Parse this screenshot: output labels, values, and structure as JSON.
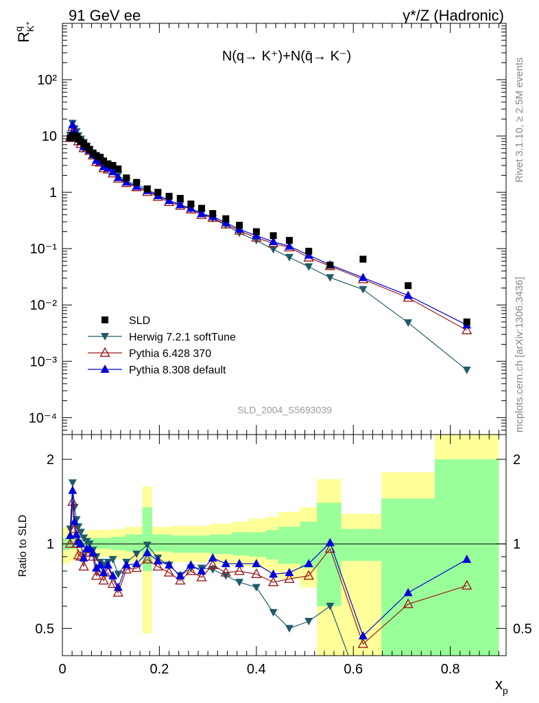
{
  "header": {
    "left": "91 GeV ee",
    "right": "γ*/Z (Hadronic)"
  },
  "side_text": {
    "rivet": "Rivet 3.1.10, ≥ 2.5M events",
    "mcplots": "mcplots.cern.ch [arXiv:1306.3436]"
  },
  "ylabel_top": {
    "main": "R",
    "sup": "q",
    "sub": "K",
    "subsup": "+"
  },
  "inner_title": "N(q→ K⁺)+N(q̄→ K⁻)",
  "analysis_id": "SLD_2004_S5693039",
  "ylabel_ratio": "Ratio to SLD",
  "xlabel": "x",
  "xlabel_sub": "p",
  "legend": [
    {
      "label": "SLD",
      "marker": "square",
      "color": "#000000"
    },
    {
      "label": "Herwig 7.2.1 softTune",
      "marker": "triangle-down",
      "color": "#1f5c6b"
    },
    {
      "label": "Pythia 6.428 370",
      "marker": "triangle-open",
      "color": "#9b1b1b"
    },
    {
      "label": "Pythia 8.308 default",
      "marker": "triangle-up",
      "color": "#0000dd"
    }
  ],
  "chart_data": {
    "type": "scatter",
    "x_range": [
      0,
      0.915
    ],
    "top_panel": {
      "yscale": "log",
      "ylim": [
        5e-05,
        1000
      ],
      "y_ticks": [
        "10⁻⁴",
        "10⁻³",
        "10⁻²",
        "10⁻¹",
        "1",
        "10",
        "10²"
      ]
    },
    "ratio_panel": {
      "yscale": "log",
      "ylim": [
        0.4,
        2.45
      ],
      "y_ticks": [
        "0.5",
        "1",
        "2"
      ]
    },
    "x_ticks": [
      "0",
      "0.2",
      "0.4",
      "0.6",
      "0.8"
    ],
    "x": [
      0.016,
      0.021,
      0.025,
      0.029,
      0.033,
      0.038,
      0.044,
      0.05,
      0.056,
      0.063,
      0.07,
      0.078,
      0.085,
      0.094,
      0.104,
      0.115,
      0.132,
      0.153,
      0.175,
      0.197,
      0.22,
      0.243,
      0.265,
      0.287,
      0.31,
      0.337,
      0.365,
      0.4,
      0.435,
      0.468,
      0.508,
      0.552,
      0.62,
      0.713,
      0.834
    ],
    "series": [
      {
        "name": "SLD",
        "values": [
          9.2,
          10.2,
          10.0,
          9.8,
          8.8,
          8.0,
          7.3,
          6.5,
          5.8,
          5.0,
          4.5,
          4.2,
          3.6,
          3.2,
          3.0,
          2.6,
          1.8,
          1.5,
          1.15,
          1.0,
          0.85,
          0.78,
          0.62,
          0.52,
          0.42,
          0.34,
          0.26,
          0.2,
          0.17,
          0.14,
          0.09,
          0.051,
          0.065,
          0.022,
          0.005
        ]
      },
      {
        "name": "Herwig 7.2.1 softTune",
        "ratio": [
          1.13,
          1.65,
          1.35,
          1.22,
          1.15,
          1.1,
          1.05,
          1.02,
          1.0,
          0.95,
          0.9,
          0.86,
          0.84,
          0.86,
          0.88,
          0.78,
          0.86,
          0.92,
          0.99,
          0.89,
          0.84,
          0.77,
          0.82,
          0.82,
          0.81,
          0.77,
          0.73,
          0.7,
          0.57,
          0.5,
          0.53,
          0.6,
          0.29,
          0.22,
          0.14
        ]
      },
      {
        "name": "Pythia 6.428 370",
        "ratio": [
          1.0,
          1.41,
          1.13,
          1.0,
          0.91,
          0.9,
          0.83,
          0.93,
          0.93,
          0.9,
          0.77,
          0.8,
          0.74,
          0.79,
          0.72,
          0.67,
          0.81,
          0.82,
          0.88,
          0.83,
          0.79,
          0.74,
          0.8,
          0.76,
          0.84,
          0.79,
          0.8,
          0.78,
          0.73,
          0.75,
          0.77,
          0.96,
          0.44,
          0.61,
          0.71
        ]
      },
      {
        "name": "Pythia 8.308 default",
        "ratio": [
          1.07,
          1.55,
          1.2,
          1.08,
          1.02,
          1.0,
          0.89,
          0.96,
          0.96,
          0.93,
          0.82,
          0.84,
          0.79,
          0.84,
          0.77,
          0.7,
          0.84,
          0.85,
          0.93,
          0.87,
          0.84,
          0.77,
          0.84,
          0.8,
          0.89,
          0.85,
          0.85,
          0.85,
          0.78,
          0.79,
          0.85,
          1.01,
          0.47,
          0.67,
          0.88
        ]
      }
    ],
    "uncertainty_bands": [
      {
        "xlo": 0.0,
        "xhi": 0.015,
        "inner": [
          0.95,
          1.05
        ],
        "outer": [
          0.85,
          1.15
        ]
      },
      {
        "xlo": 0.015,
        "xhi": 0.03,
        "inner": [
          0.96,
          1.04
        ],
        "outer": [
          0.87,
          1.1
        ]
      },
      {
        "xlo": 0.03,
        "xhi": 0.05,
        "inner": [
          0.97,
          1.03
        ],
        "outer": [
          0.9,
          1.08
        ]
      },
      {
        "xlo": 0.05,
        "xhi": 0.1,
        "inner": [
          0.96,
          1.05
        ],
        "outer": [
          0.9,
          1.12
        ]
      },
      {
        "xlo": 0.1,
        "xhi": 0.13,
        "inner": [
          0.95,
          1.06
        ],
        "outer": [
          0.88,
          1.13
        ]
      },
      {
        "xlo": 0.13,
        "xhi": 0.165,
        "inner": [
          0.94,
          1.08
        ],
        "outer": [
          0.86,
          1.15
        ]
      },
      {
        "xlo": 0.165,
        "xhi": 0.185,
        "inner": [
          0.8,
          1.35
        ],
        "outer": [
          0.48,
          1.6
        ]
      },
      {
        "xlo": 0.185,
        "xhi": 0.225,
        "inner": [
          0.94,
          1.08
        ],
        "outer": [
          0.86,
          1.15
        ]
      },
      {
        "xlo": 0.225,
        "xhi": 0.305,
        "inner": [
          0.93,
          1.07
        ],
        "outer": [
          0.86,
          1.16
        ]
      },
      {
        "xlo": 0.305,
        "xhi": 0.35,
        "inner": [
          0.92,
          1.08
        ],
        "outer": [
          0.85,
          1.18
        ]
      },
      {
        "xlo": 0.35,
        "xhi": 0.385,
        "inner": [
          0.91,
          1.1
        ],
        "outer": [
          0.83,
          1.2
        ]
      },
      {
        "xlo": 0.385,
        "xhi": 0.42,
        "inner": [
          0.9,
          1.1
        ],
        "outer": [
          0.82,
          1.23
        ]
      },
      {
        "xlo": 0.42,
        "xhi": 0.445,
        "inner": [
          0.88,
          1.12
        ],
        "outer": [
          0.8,
          1.25
        ]
      },
      {
        "xlo": 0.445,
        "xhi": 0.49,
        "inner": [
          0.85,
          1.15
        ],
        "outer": [
          0.75,
          1.3
        ]
      },
      {
        "xlo": 0.49,
        "xhi": 0.525,
        "inner": [
          0.82,
          1.2
        ],
        "outer": [
          0.7,
          1.35
        ]
      },
      {
        "xlo": 0.525,
        "xhi": 0.575,
        "inner": [
          0.6,
          1.4
        ],
        "outer": [
          0.4,
          1.7
        ]
      },
      {
        "xlo": 0.575,
        "xhi": 0.658,
        "inner": [
          0.87,
          1.13
        ],
        "outer": [
          0.4,
          1.28
        ]
      },
      {
        "xlo": 0.658,
        "xhi": 0.768,
        "inner": [
          0.4,
          1.45
        ],
        "outer": [
          0.4,
          1.8
        ]
      },
      {
        "xlo": 0.768,
        "xhi": 0.9,
        "inner": [
          0.4,
          2.0
        ],
        "outer": [
          0.4,
          2.45
        ]
      }
    ],
    "legend_position": "lower-left",
    "grid": false
  }
}
